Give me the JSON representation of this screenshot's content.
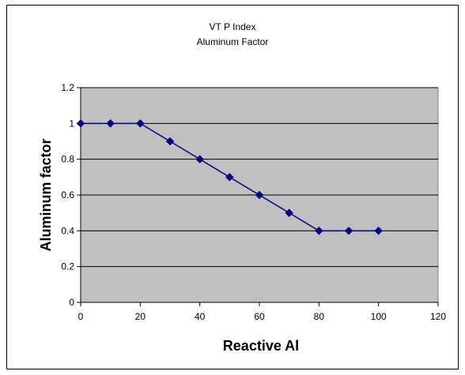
{
  "chart_data": {
    "type": "line",
    "title": "VT P Index",
    "subtitle": "Aluminum Factor",
    "xlabel": "Reactive Al",
    "ylabel": "Aluminum factor",
    "xlim": [
      0,
      120
    ],
    "ylim": [
      0,
      1.2
    ],
    "x_ticks": [
      "0",
      "20",
      "40",
      "60",
      "80",
      "100",
      "120"
    ],
    "y_ticks": [
      "0",
      "0.2",
      "0.4",
      "0.6",
      "0.8",
      "1",
      "1.2"
    ],
    "grid": "horizontal",
    "legend": "none",
    "colors": {
      "plot_bg": "#c0c0c0",
      "series": "#000080"
    },
    "series": [
      {
        "x": [
          0,
          10,
          20,
          30,
          40,
          50,
          60,
          70,
          80,
          90,
          100
        ],
        "y": [
          1,
          1,
          1,
          0.9,
          0.8,
          0.7,
          0.6,
          0.5,
          0.4,
          0.4,
          0.4
        ]
      }
    ]
  }
}
